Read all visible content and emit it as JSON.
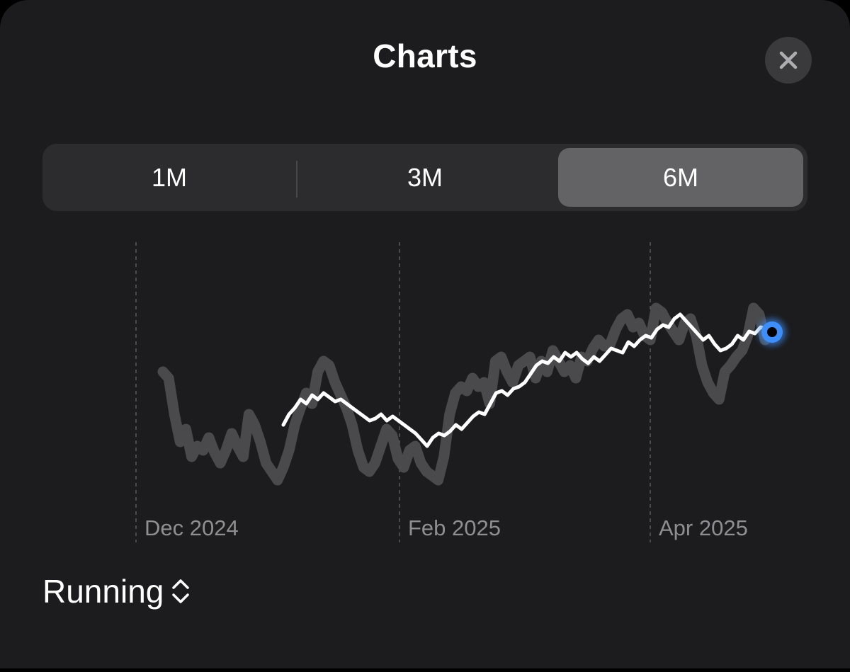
{
  "header": {
    "title": "Charts",
    "close_icon": "xmark-icon"
  },
  "range_picker": {
    "options": [
      "1M",
      "3M",
      "6M"
    ],
    "selected": "6M"
  },
  "metric_picker": {
    "label": "Running",
    "icon": "chevron-up-down-icon"
  },
  "colors": {
    "background": "#1c1c1e",
    "raw_line": "#4a4a4c",
    "average_line": "#ffffff",
    "current_point": "#3d8ef8"
  },
  "chart_data": {
    "type": "line",
    "x_tick_labels": [
      "Dec 2024",
      "Feb 2025",
      "Apr 2025"
    ],
    "grid": "vertical-dashed",
    "y_axis": "hidden",
    "ylim": [
      0,
      100
    ],
    "series": [
      {
        "role": "raw",
        "values": [
          55,
          52,
          35,
          22,
          28,
          15,
          20,
          18,
          24,
          17,
          12,
          18,
          26,
          20,
          15,
          35,
          30,
          22,
          12,
          8,
          4,
          10,
          18,
          30,
          38,
          45,
          40,
          55,
          60,
          58,
          50,
          44,
          38,
          30,
          18,
          10,
          8,
          12,
          20,
          28,
          25,
          14,
          10,
          18,
          20,
          12,
          8,
          6,
          4,
          15,
          35,
          45,
          48,
          46,
          52,
          48,
          50,
          40,
          60,
          62,
          55,
          50,
          58,
          60,
          62,
          52,
          60,
          55,
          65,
          60,
          55,
          58,
          52,
          62,
          60,
          66,
          70,
          67,
          68,
          75,
          80,
          82,
          76,
          78,
          72,
          70,
          85,
          83,
          78,
          74,
          70,
          78,
          80,
          72,
          58,
          50,
          45,
          42,
          55,
          58,
          62,
          65,
          72,
          85,
          82,
          70
        ]
      },
      {
        "role": "average",
        "values": [
          30,
          35,
          38,
          42,
          40,
          44,
          42,
          45,
          43,
          41,
          42,
          40,
          38,
          36,
          34,
          32,
          33,
          35,
          32,
          34,
          32,
          30,
          28,
          26,
          23,
          20,
          24,
          26,
          25,
          27,
          30,
          28,
          31,
          34,
          36,
          35,
          40,
          45,
          46,
          44,
          47,
          48,
          50,
          54,
          58,
          60,
          59,
          62,
          60,
          64,
          62,
          64,
          61,
          59,
          62,
          60,
          63,
          66,
          65,
          64,
          69,
          67,
          70,
          72,
          71,
          75,
          77,
          76,
          80,
          82,
          79,
          76,
          73,
          70,
          72,
          68,
          65,
          66,
          68,
          72,
          70,
          74,
          73,
          76,
          75
        ]
      }
    ],
    "current_value": 73
  }
}
